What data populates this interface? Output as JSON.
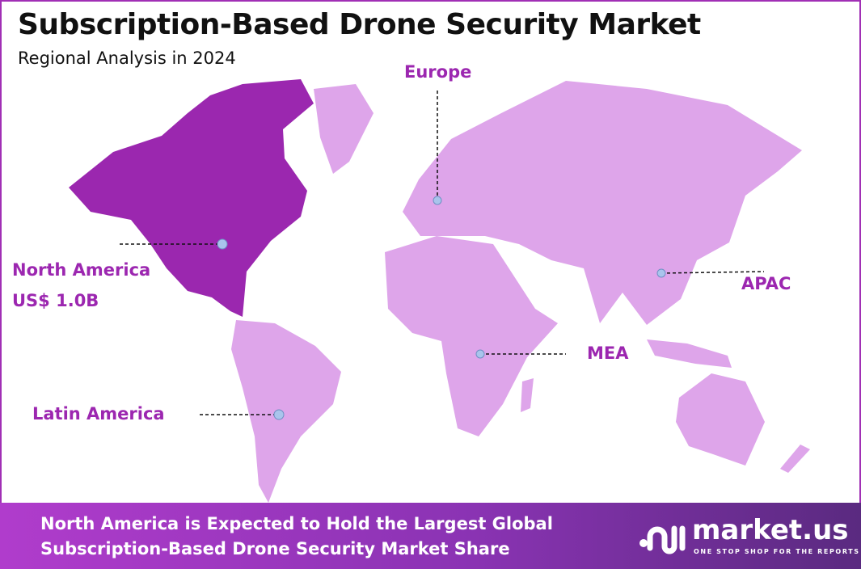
{
  "header": {
    "title": "Subscription-Based Drone Security Market",
    "subtitle": "Regional Analysis in 2024"
  },
  "colors": {
    "highlight_region": "#9b27af",
    "other_regions": "#dea5ea",
    "label": "#9c27b0",
    "marker": "#a9c4ec"
  },
  "regions": [
    {
      "name": "North America",
      "value": "US$ 1.0B",
      "highlighted": true
    },
    {
      "name": "Europe",
      "highlighted": false
    },
    {
      "name": "APAC",
      "highlighted": false
    },
    {
      "name": "MEA",
      "highlighted": false
    },
    {
      "name": "Latin America",
      "highlighted": false
    }
  ],
  "banner": {
    "line1": "North America is Expected to Hold the Largest Global",
    "line2": "Subscription-Based Drone Security Market Share"
  },
  "logo": {
    "word": "market.us",
    "tagline": "ONE STOP SHOP FOR THE REPORTS"
  }
}
